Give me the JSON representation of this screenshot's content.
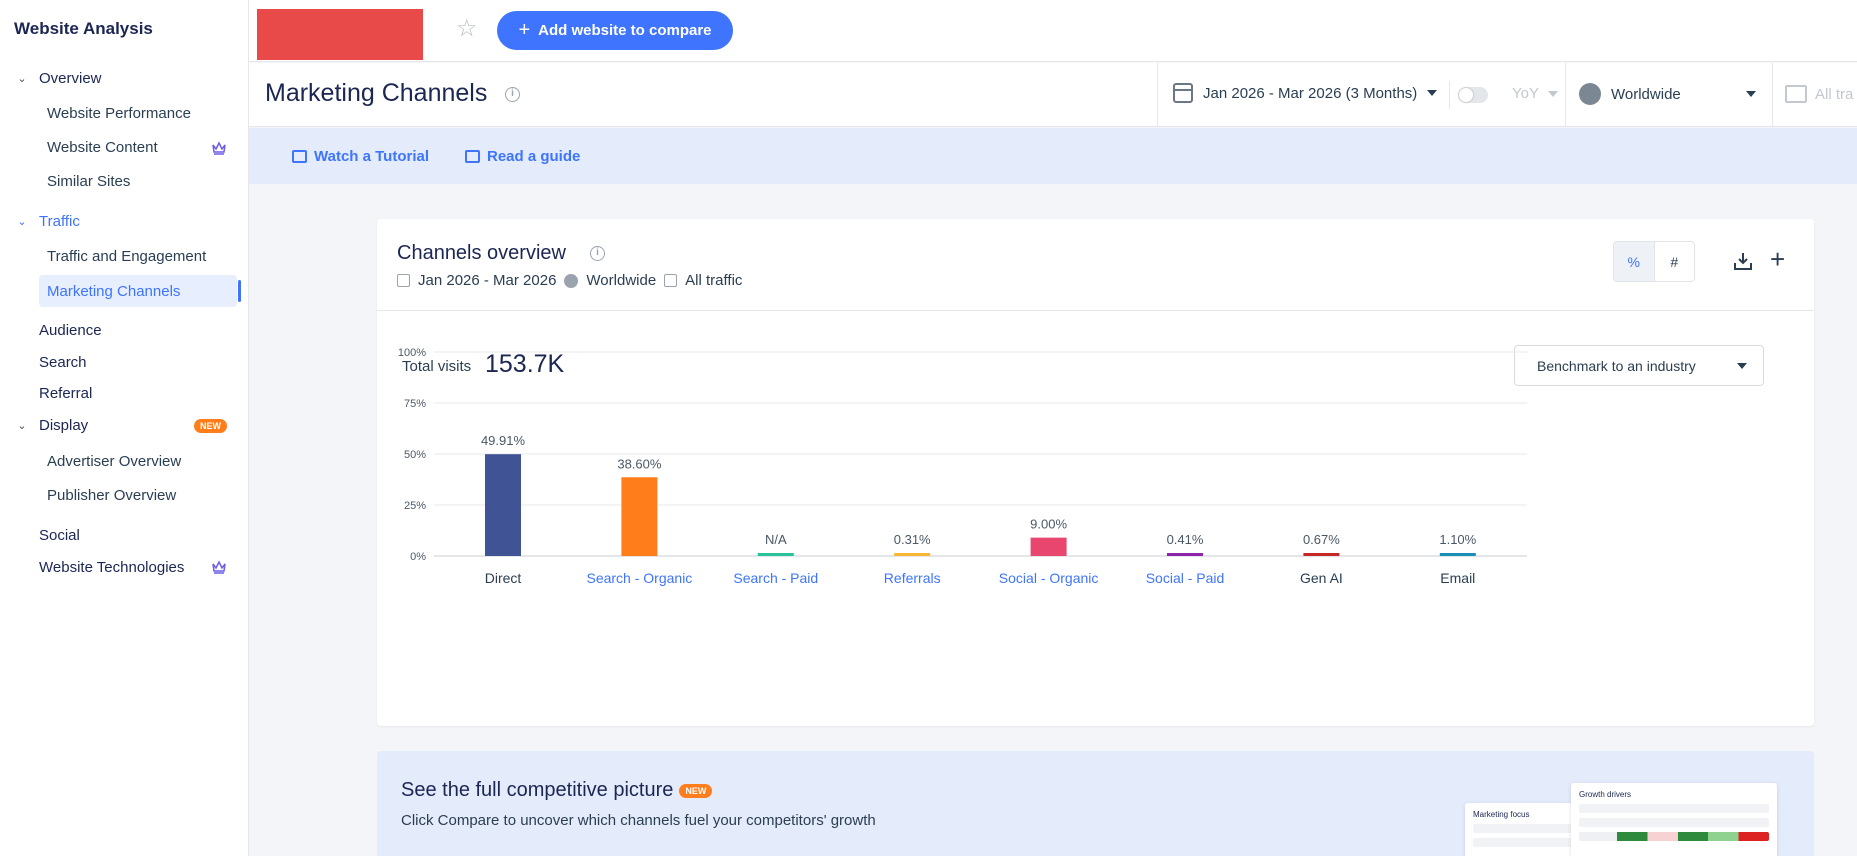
{
  "sidebar": {
    "title": "Website Analysis",
    "groups": {
      "overview": "Overview",
      "traffic": "Traffic",
      "audience": "Audience",
      "search": "Search",
      "referral": "Referral",
      "display": "Display",
      "social": "Social",
      "website_technologies": "Website Technologies"
    },
    "items": {
      "website_performance": "Website Performance",
      "website_content": "Website Content",
      "similar_sites": "Similar Sites",
      "traffic_engagement": "Traffic and Engagement",
      "marketing_channels": "Marketing Channels",
      "advertiser_overview": "Advertiser Overview",
      "publisher_overview": "Publisher Overview"
    },
    "new_badge": "NEW"
  },
  "topbar": {
    "add_button": "Add website to compare",
    "star_icon": "star-icon"
  },
  "header": {
    "title": "Marketing Channels",
    "date_range": "Jan 2026 - Mar 2026 (3 Months)",
    "yoy": "YoY",
    "region": "Worldwide",
    "traffic_type": "All tra"
  },
  "tutorial": {
    "watch": "Watch a Tutorial",
    "guide": "Read a guide"
  },
  "card": {
    "title": "Channels overview",
    "meta_date": "Jan 2026 - Mar 2026",
    "meta_region": "Worldwide",
    "meta_traffic": "All traffic",
    "seg_percent": "%",
    "seg_number": "#",
    "total_visits_label": "Total visits",
    "total_visits_value": "153.7K",
    "benchmark": "Benchmark to an industry"
  },
  "chart_data": {
    "type": "bar",
    "categories": [
      "Direct",
      "Search - Organic",
      "Search - Paid",
      "Referrals",
      "Social - Organic",
      "Social - Paid",
      "Gen AI",
      "Email"
    ],
    "values": [
      49.91,
      38.6,
      0,
      0.31,
      9.0,
      0.41,
      0.67,
      1.1
    ],
    "labels": [
      "49.91%",
      "38.60%",
      "N/A",
      "0.31%",
      "9.00%",
      "0.41%",
      "0.67%",
      "1.10%"
    ],
    "colors": [
      "#3f5395",
      "#ff7d1a",
      "#27c49a",
      "#f7b733",
      "#e8466f",
      "#8e24aa",
      "#c62828",
      "#1a8fb5"
    ],
    "category_colors": [
      "#2a3e52",
      "#3e74fe",
      "#3e74fe",
      "#3e74fe",
      "#3e74fe",
      "#3e74fe",
      "#2a3e52",
      "#2a3e52"
    ],
    "yticks": [
      "0%",
      "25%",
      "50%",
      "75%",
      "100%"
    ],
    "ylim": [
      0,
      100
    ],
    "grid": true
  },
  "promo": {
    "title": "See the full competitive picture",
    "badge": "NEW",
    "text": "Click Compare to uncover which channels fuel your competitors' growth",
    "mini1_title": "Marketing focus",
    "mini2_title": "Growth drivers"
  }
}
